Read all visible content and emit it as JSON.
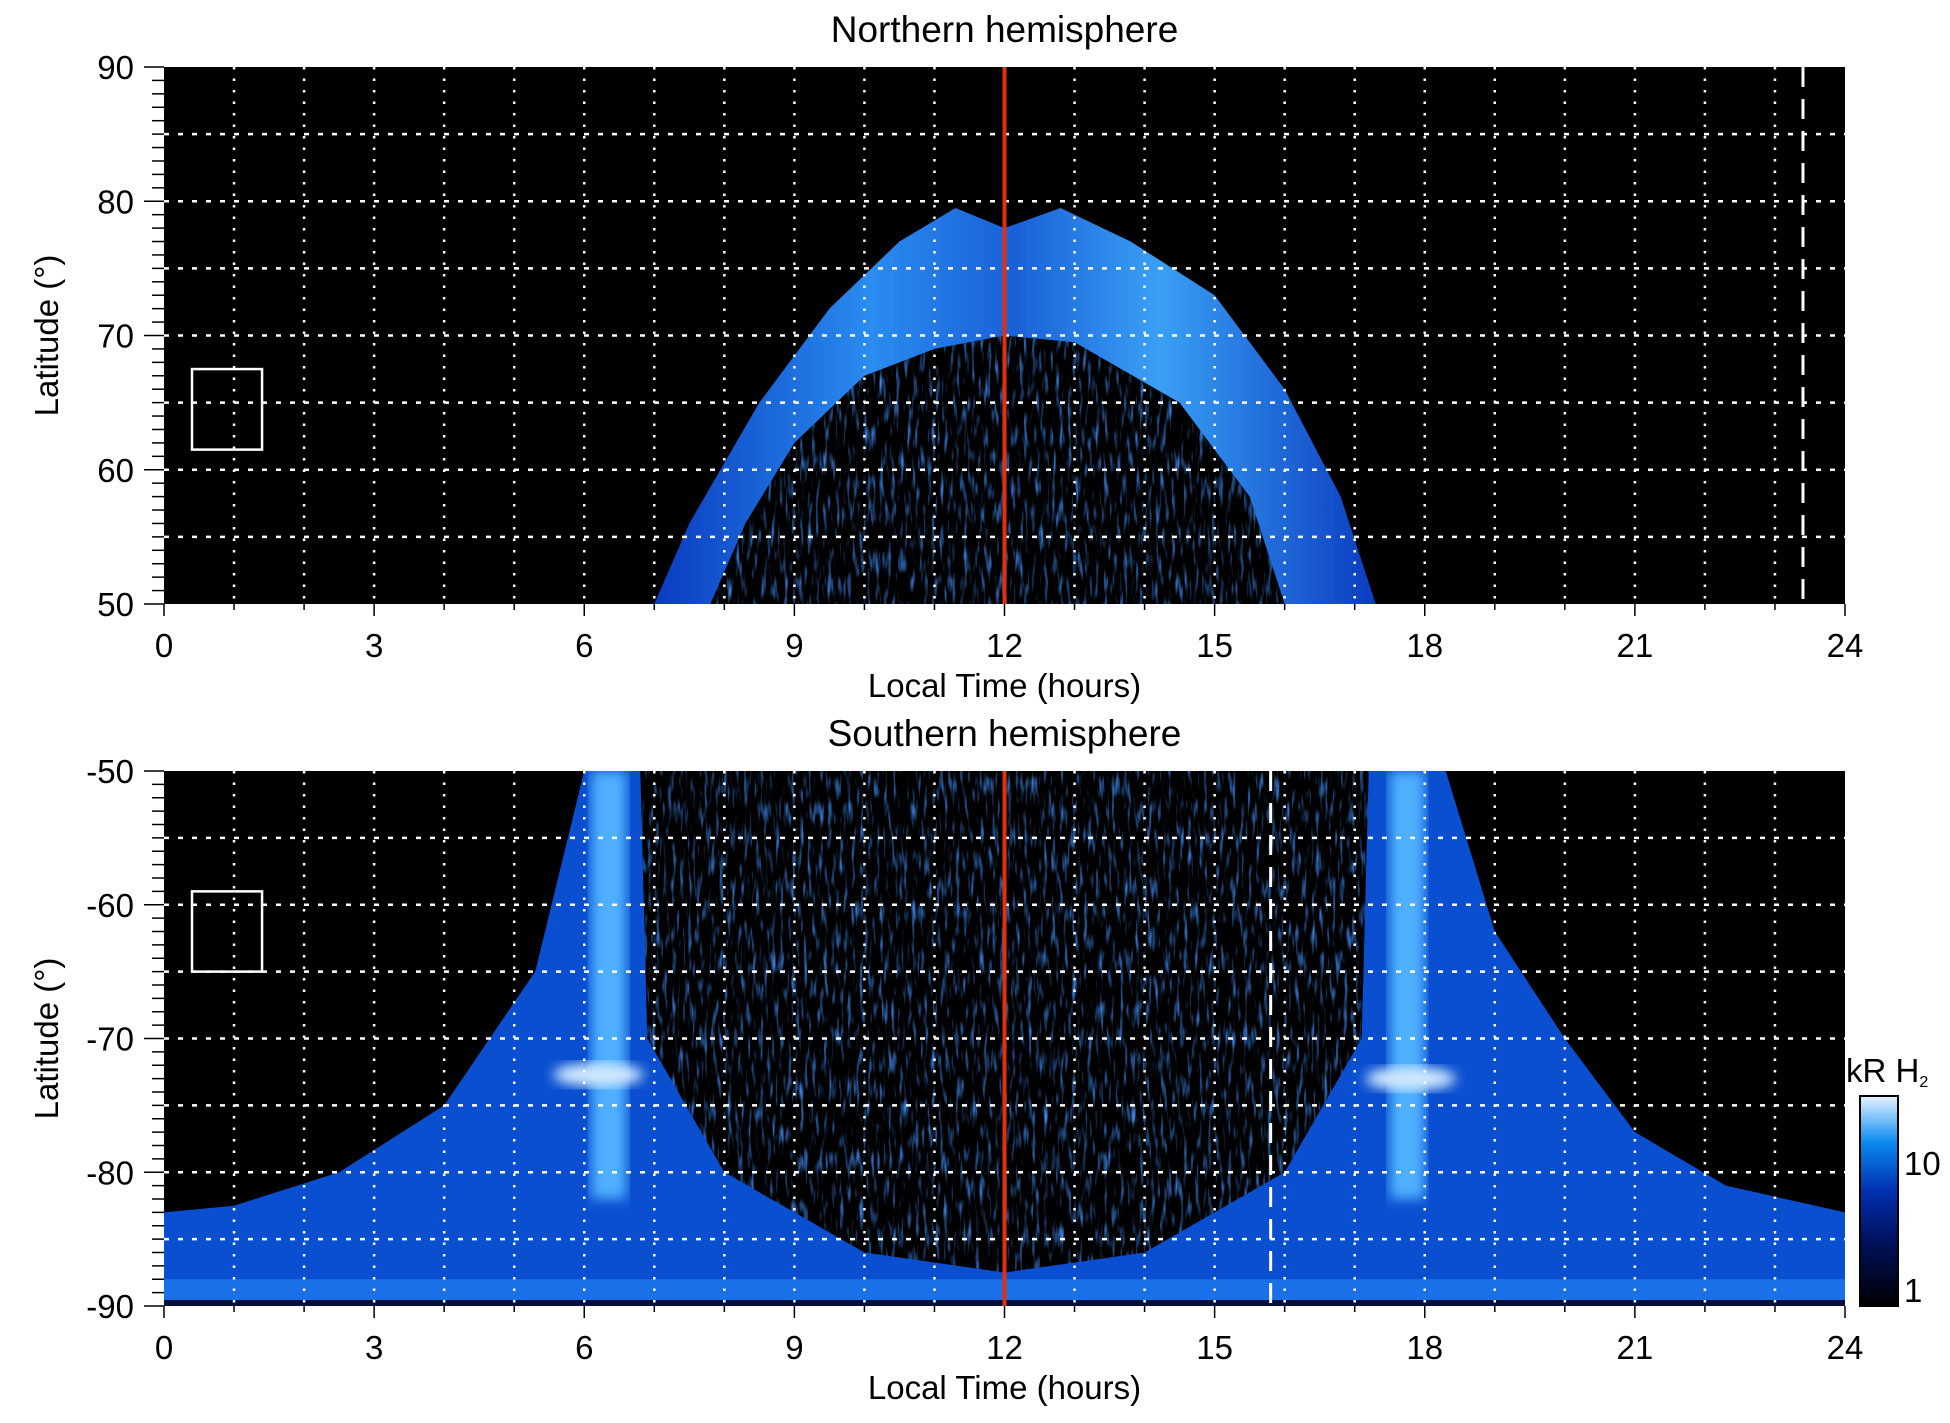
{
  "chart_data": [
    {
      "type": "heatmap",
      "title": "Northern hemisphere",
      "xlabel": "Local Time (hours)",
      "ylabel": "Latitude (°)",
      "xlim": [
        0,
        24
      ],
      "ylim": [
        50,
        90
      ],
      "xticks": [
        "0",
        "3",
        "6",
        "9",
        "12",
        "15",
        "18",
        "21",
        "24"
      ],
      "yticks": [
        "50",
        "60",
        "70",
        "80",
        "90"
      ],
      "grid": true,
      "red_line_lt": 12,
      "dashed_line_lt": 23.4,
      "box": {
        "lt": [
          0.4,
          1.4
        ],
        "lat": [
          61.5,
          67.5
        ]
      },
      "auroral_oval": {
        "outer": [
          [
            7,
            50
          ],
          [
            7.5,
            56
          ],
          [
            8.5,
            65
          ],
          [
            9.5,
            72
          ],
          [
            10.5,
            77
          ],
          [
            11.3,
            79.5
          ],
          [
            12,
            78
          ],
          [
            12.8,
            79.5
          ],
          [
            13.8,
            77
          ],
          [
            15,
            73
          ],
          [
            16,
            66
          ],
          [
            16.8,
            58
          ],
          [
            17.3,
            50
          ]
        ],
        "inner": [
          [
            16,
            50
          ],
          [
            15.5,
            58
          ],
          [
            14.5,
            65
          ],
          [
            13,
            69.5
          ],
          [
            12,
            70
          ],
          [
            11,
            69
          ],
          [
            10,
            67
          ],
          [
            9,
            62
          ],
          [
            8.3,
            56
          ],
          [
            7.8,
            50
          ]
        ]
      }
    },
    {
      "type": "heatmap",
      "title": "Southern hemisphere",
      "xlabel": "Local Time (hours)",
      "ylabel": "Latitude (°)",
      "xlim": [
        0,
        24
      ],
      "ylim": [
        -90,
        -50
      ],
      "xticks": [
        "0",
        "3",
        "6",
        "9",
        "12",
        "15",
        "18",
        "21",
        "24"
      ],
      "yticks": [
        "-90",
        "-80",
        "-70",
        "-60",
        "-50"
      ],
      "grid": true,
      "red_line_lt": 12,
      "dashed_line_lt": 15.8,
      "box": {
        "lt": [
          0.4,
          1.4
        ],
        "lat": [
          -65,
          -59
        ]
      },
      "bright_spots": [
        [
          6.2,
          -72.7
        ],
        [
          17.8,
          -73
        ]
      ]
    }
  ],
  "colorbar": {
    "label": "kR H",
    "label_sub": "2",
    "ticks": [
      "1",
      "10"
    ],
    "range": [
      1,
      30
    ],
    "scale": "log"
  }
}
